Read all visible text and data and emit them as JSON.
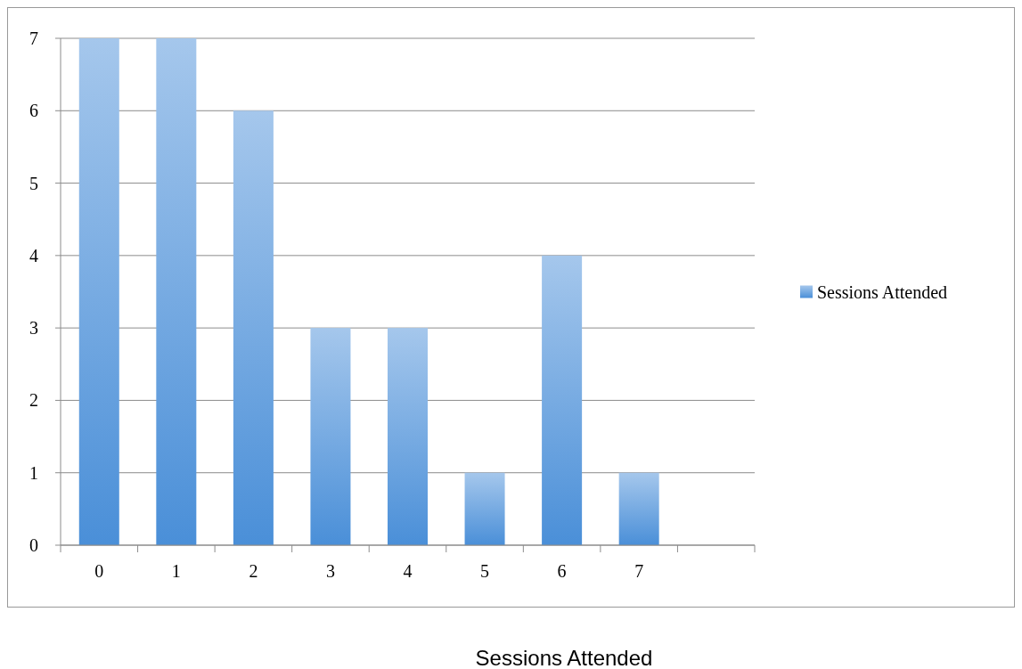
{
  "chart_data": {
    "type": "bar",
    "xlabel": "Sessions Attended",
    "categories": [
      "0",
      "1",
      "2",
      "3",
      "4",
      "5",
      "6",
      "7",
      null
    ],
    "series": [
      {
        "name": "Sessions Attended",
        "color": "#4a8fd8",
        "values": [
          7,
          7,
          6,
          3,
          3,
          1,
          4,
          1,
          null
        ]
      }
    ],
    "ylim": [
      0,
      7
    ],
    "yticks": [
      0,
      1,
      2,
      3,
      4,
      5,
      6,
      7
    ],
    "grid": "y",
    "legend": "right"
  }
}
